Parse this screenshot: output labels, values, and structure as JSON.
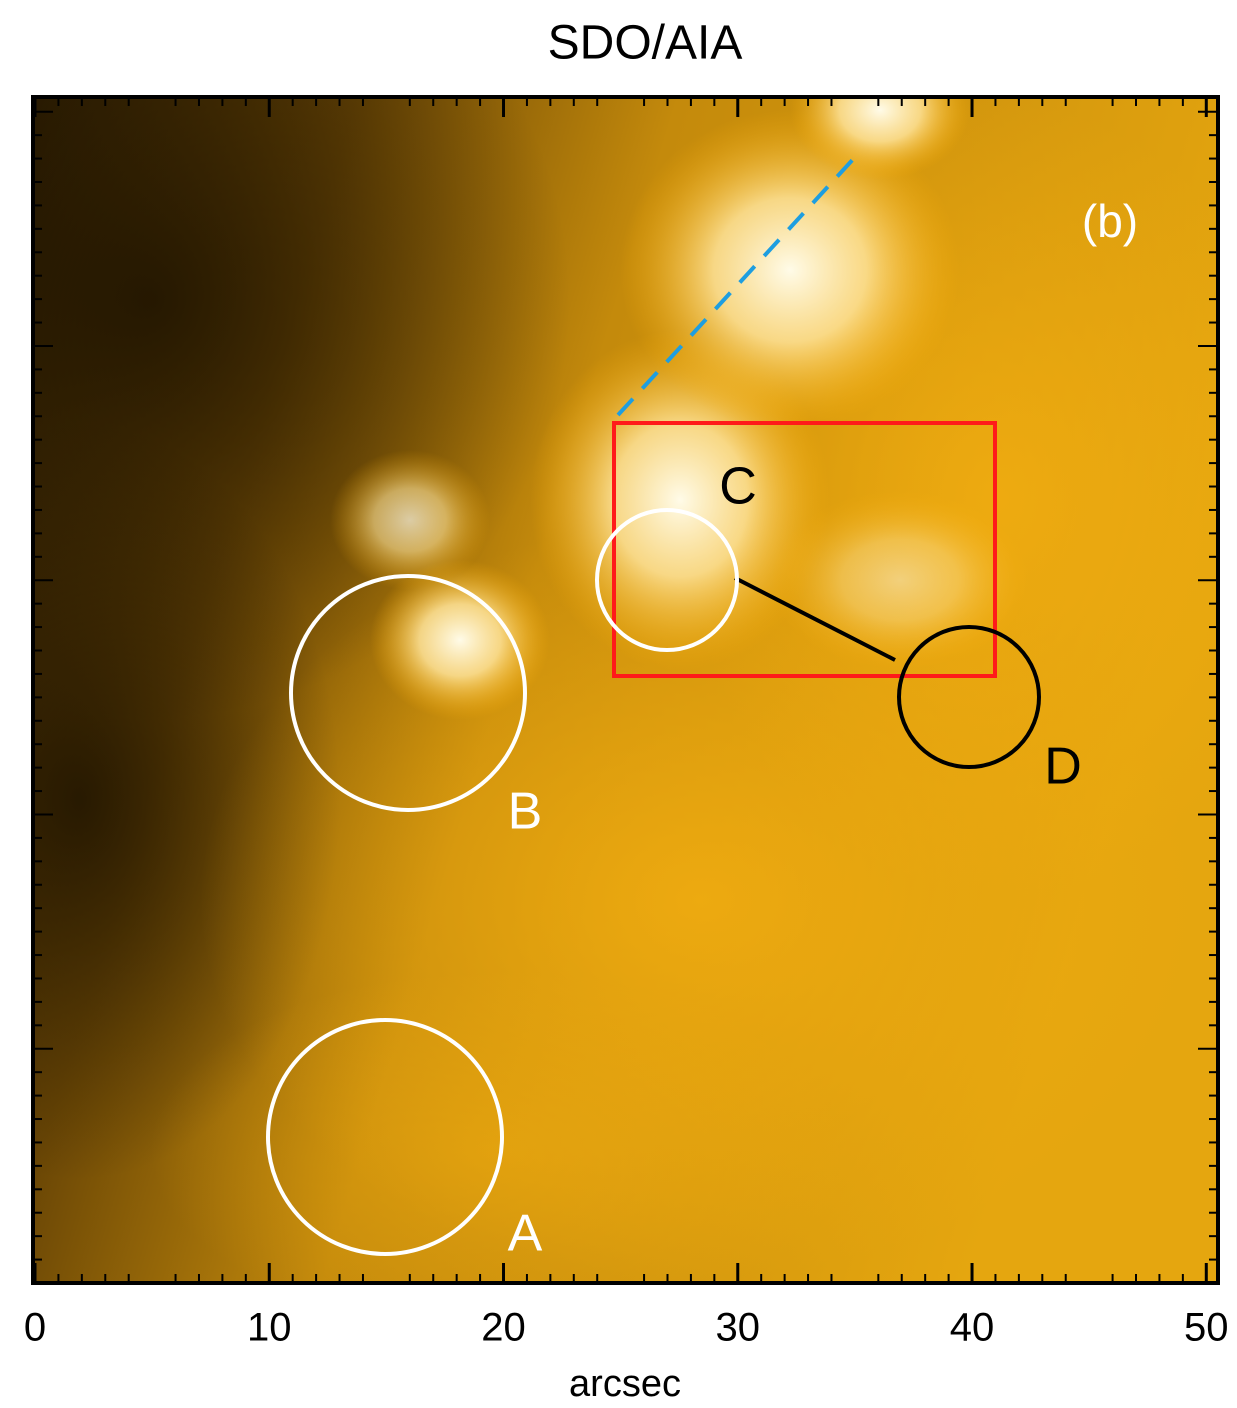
{
  "chart_data": {
    "type": "image",
    "title": "SDO/AIA",
    "x_label": "arcsec",
    "xlim": [
      0,
      50.5
    ],
    "xticks": [
      0,
      10,
      20,
      30,
      40,
      50
    ],
    "annotations": [
      "(b)",
      "A",
      "B",
      "C",
      "D"
    ]
  }
}
